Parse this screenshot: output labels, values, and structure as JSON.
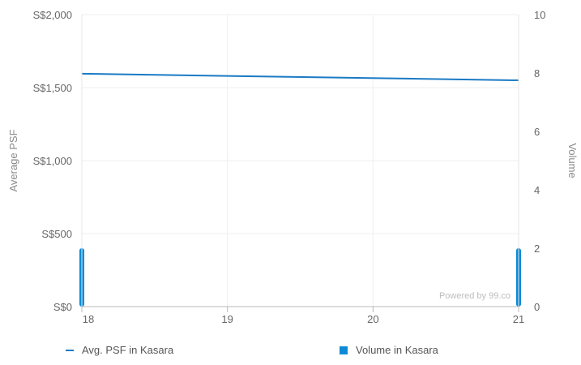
{
  "chart_data": {
    "type": "line",
    "x": [
      18,
      19,
      20,
      21
    ],
    "x_tick_labels": [
      "18",
      "19",
      "20",
      "21"
    ],
    "xlim": [
      18,
      21
    ],
    "y_left": {
      "label": "Average PSF",
      "lim": [
        0,
        2000
      ],
      "ticks": [
        0,
        500,
        1000,
        1500,
        2000
      ],
      "tick_labels": [
        "S$0",
        "S$500",
        "S$1,000",
        "S$1,500",
        "S$2,000"
      ]
    },
    "y_right": {
      "label": "Volume",
      "lim": [
        0,
        10
      ],
      "ticks": [
        0,
        2,
        4,
        6,
        8,
        10
      ],
      "tick_labels": [
        "0",
        "2",
        "4",
        "6",
        "8",
        "10"
      ]
    },
    "series": [
      {
        "name": "Avg. PSF in Kasara",
        "type": "line",
        "axis": "left",
        "color": "#1a7ac4",
        "points": [
          [
            18,
            1595
          ],
          [
            21,
            1550
          ]
        ]
      },
      {
        "name": "Volume in Kasara",
        "type": "bar",
        "axis": "right",
        "color": "#0c8ad6",
        "points": [
          [
            18,
            2
          ],
          [
            21,
            2
          ]
        ]
      }
    ],
    "grid": true,
    "legend_position": "bottom",
    "watermark": "Powered by 99.co"
  }
}
